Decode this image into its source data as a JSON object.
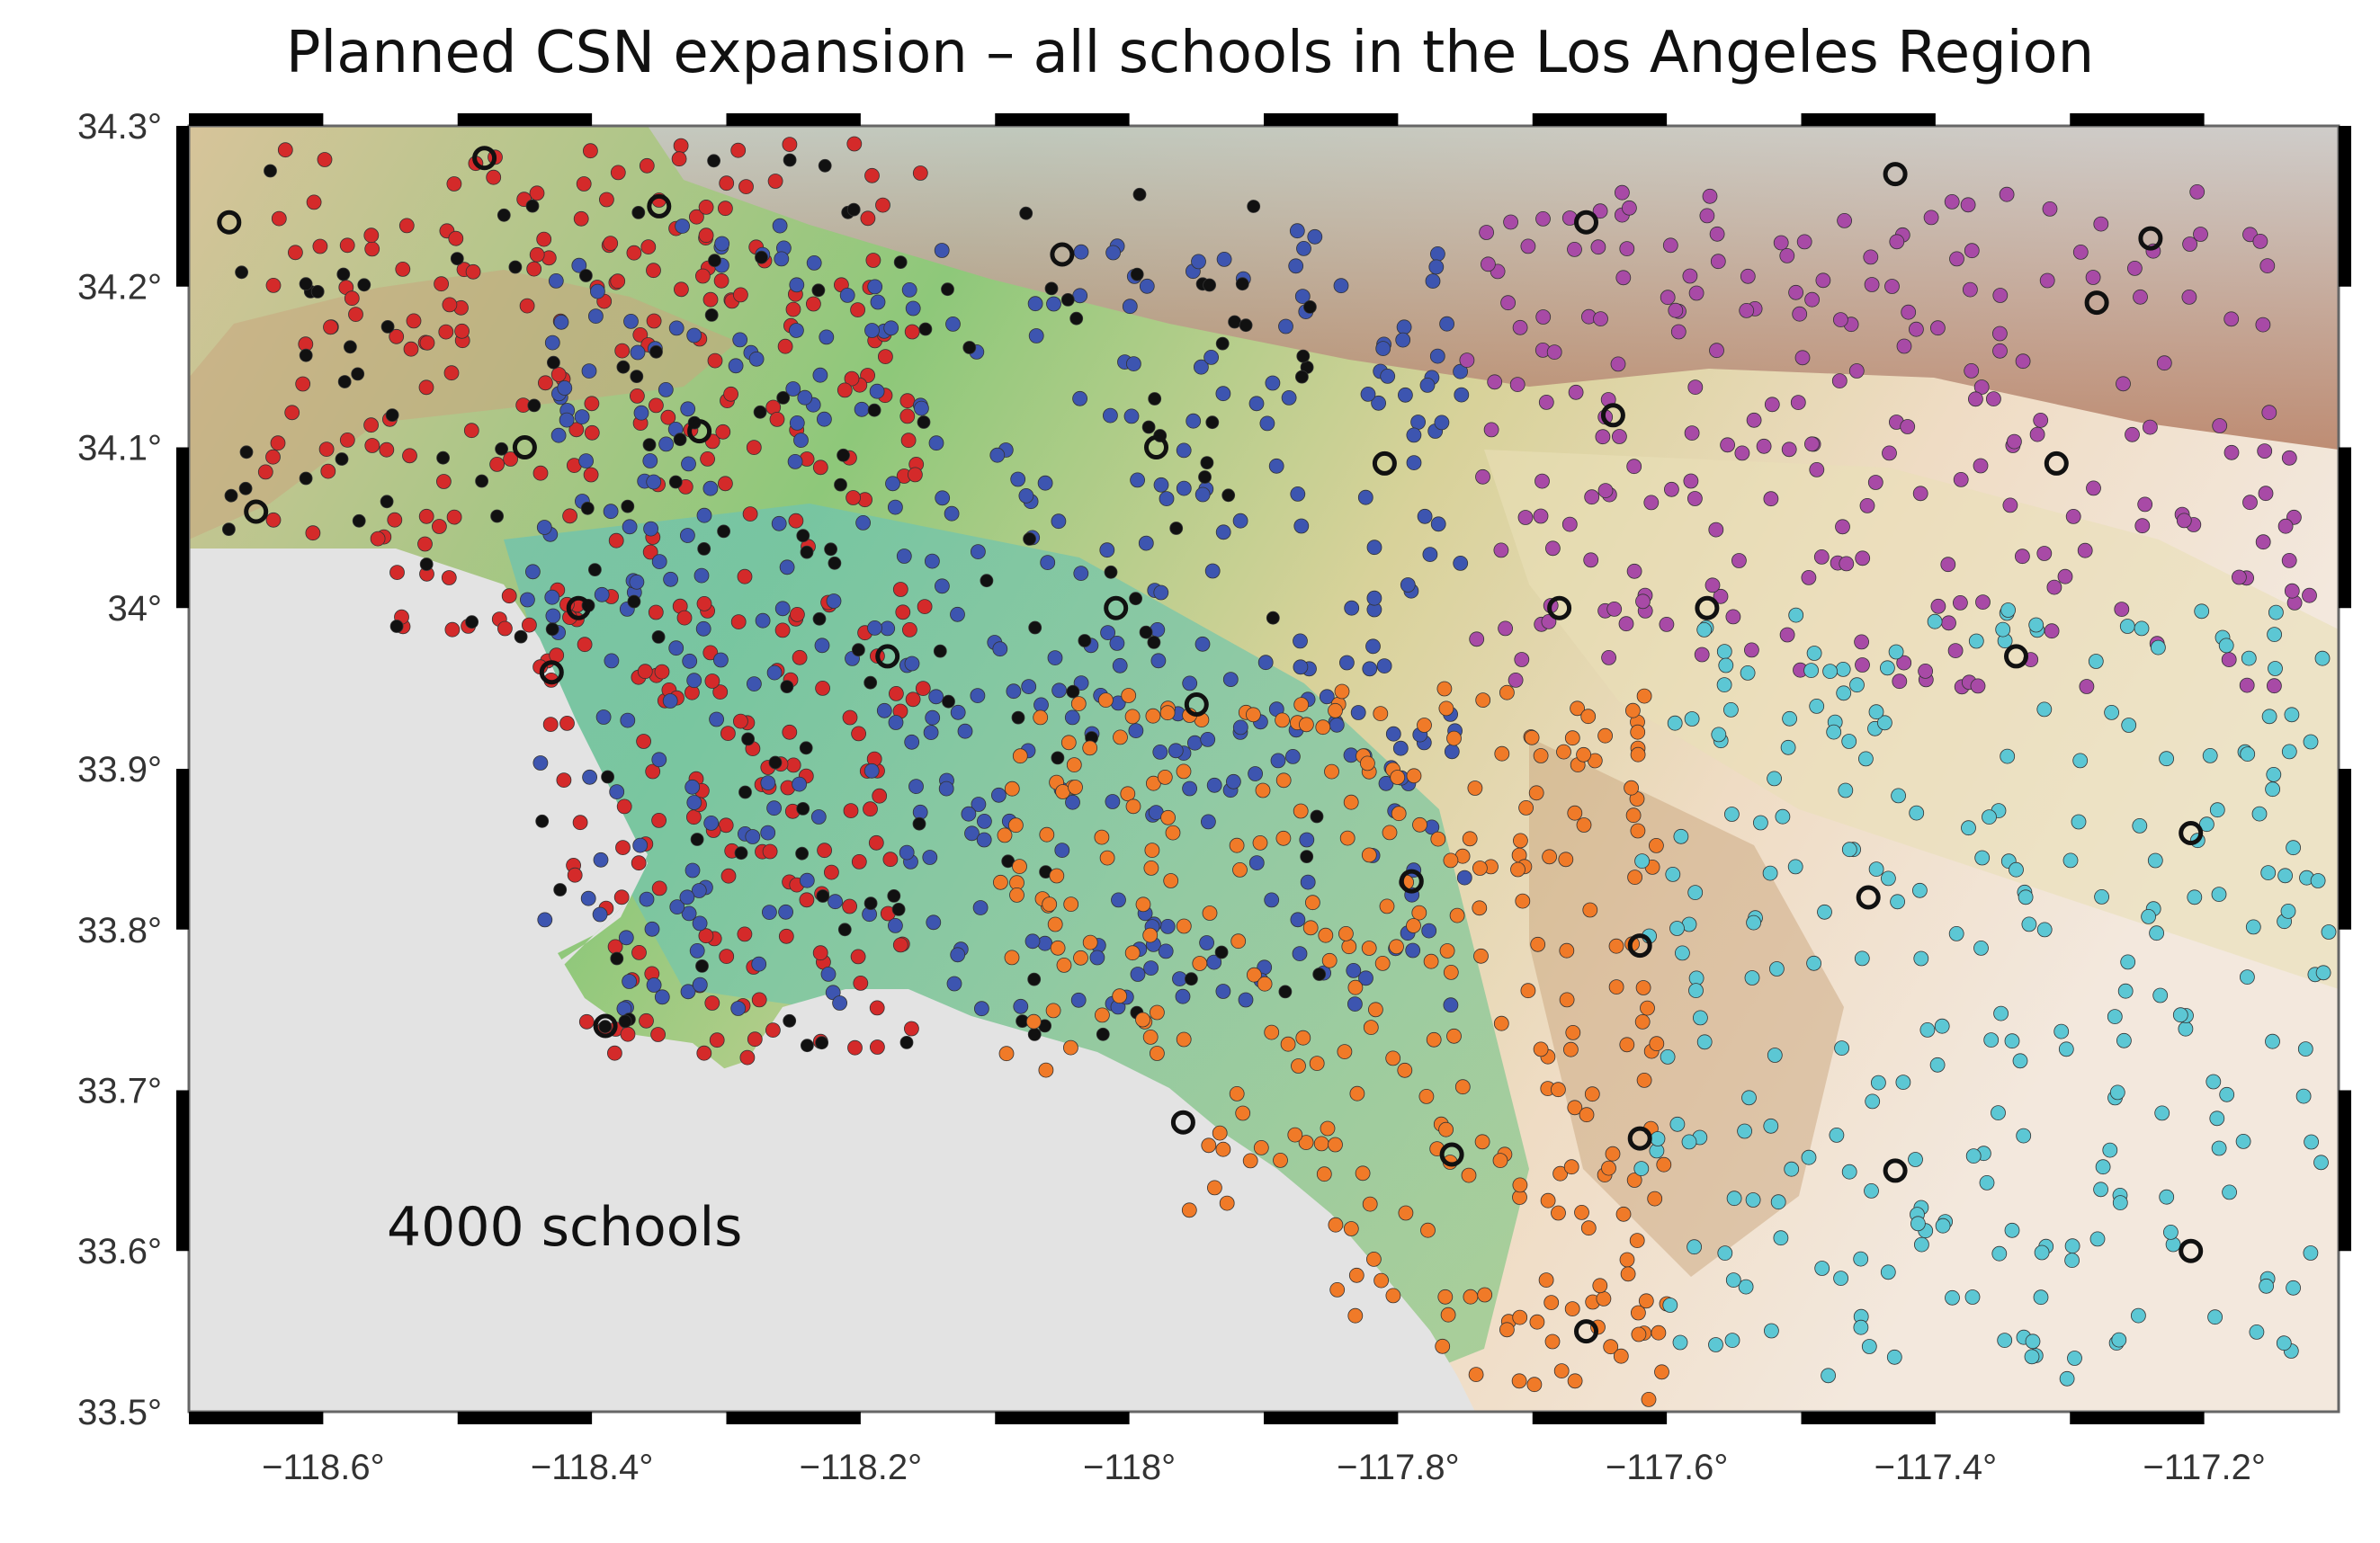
{
  "title": "Planned CSN expansion – all schools in the Los Angeles Region",
  "annotation": "4000 schools",
  "axes": {
    "x_ticks": [
      "−118.6°",
      "−118.4°",
      "−118.2°",
      "−118°",
      "−117.8°",
      "−117.6°",
      "−117.4°",
      "−117.2°"
    ],
    "y_ticks": [
      "34.3°",
      "34.2°",
      "34.1°",
      "34°",
      "33.9°",
      "33.8°",
      "33.7°",
      "33.6°",
      "33.5°"
    ],
    "lon_range": [
      -118.7,
      -117.1
    ],
    "lat_range": [
      33.5,
      34.3
    ]
  },
  "chart_data": {
    "type": "scatter",
    "xlim": [
      -118.7,
      -117.1
    ],
    "ylim": [
      33.5,
      34.3
    ],
    "colors": {
      "red": "#d42a2a",
      "blue": "#3d55b0",
      "black": "#111111",
      "orange": "#f07a28",
      "purple": "#a84aa6",
      "cyan": "#5cc7d4",
      "ring": "#111111"
    },
    "regions": [
      {
        "color": "red",
        "count": 340,
        "lon": [
          -118.65,
          -118.15
        ],
        "lat": [
          33.72,
          34.29
        ]
      },
      {
        "color": "blue",
        "count": 420,
        "lon": [
          -118.45,
          -117.75
        ],
        "lat": [
          33.75,
          34.24
        ]
      },
      {
        "color": "black",
        "count": 160,
        "lon": [
          -118.68,
          -117.85
        ],
        "lat": [
          33.72,
          34.28
        ]
      },
      {
        "color": "orange",
        "count": 300,
        "lon": [
          -118.1,
          -117.6
        ],
        "lat": [
          33.5,
          33.95
        ]
      },
      {
        "color": "purple",
        "count": 230,
        "lon": [
          -117.75,
          -117.12
        ],
        "lat": [
          33.95,
          34.26
        ]
      },
      {
        "color": "cyan",
        "count": 260,
        "lon": [
          -117.62,
          -117.1
        ],
        "lat": [
          33.52,
          34.0
        ]
      }
    ],
    "station_rings": [
      [
        -118.67,
        34.24
      ],
      [
        -118.48,
        34.28
      ],
      [
        -118.35,
        34.25
      ],
      [
        -118.05,
        34.22
      ],
      [
        -117.66,
        34.24
      ],
      [
        -117.43,
        34.27
      ],
      [
        -117.24,
        34.23
      ],
      [
        -117.28,
        34.19
      ],
      [
        -118.65,
        34.06
      ],
      [
        -118.45,
        34.1
      ],
      [
        -118.32,
        34.11
      ],
      [
        -117.98,
        34.1
      ],
      [
        -117.81,
        34.09
      ],
      [
        -117.64,
        34.12
      ],
      [
        -117.31,
        34.09
      ],
      [
        -118.41,
        34.0
      ],
      [
        -118.01,
        34.0
      ],
      [
        -117.68,
        34.0
      ],
      [
        -117.57,
        34.0
      ],
      [
        -117.34,
        33.97
      ],
      [
        -118.43,
        33.96
      ],
      [
        -118.18,
        33.97
      ],
      [
        -117.95,
        33.94
      ],
      [
        -117.21,
        33.86
      ],
      [
        -117.79,
        33.83
      ],
      [
        -117.45,
        33.82
      ],
      [
        -117.62,
        33.79
      ],
      [
        -118.39,
        33.74
      ],
      [
        -117.96,
        33.68
      ],
      [
        -117.76,
        33.66
      ],
      [
        -117.62,
        33.67
      ],
      [
        -117.43,
        33.65
      ],
      [
        -117.21,
        33.6
      ],
      [
        -117.66,
        33.55
      ]
    ]
  }
}
